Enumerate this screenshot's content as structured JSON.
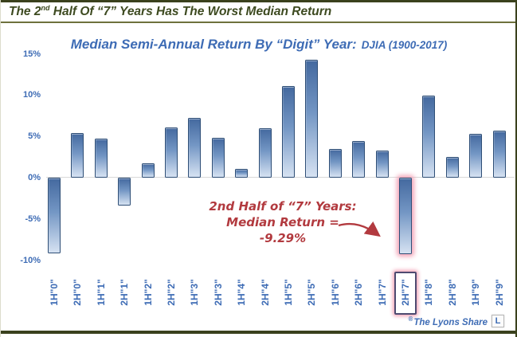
{
  "header": {
    "title_pre": "The 2",
    "title_sup": "nd",
    "title_post": " Half Of “7” Years Has The Worst Median Return"
  },
  "chart": {
    "title_main": "Median Semi-Annual Return By “Digit” Year:",
    "title_sub": "DJIA (1900-2017)"
  },
  "chart_data": {
    "type": "bar",
    "title": "Median Semi-Annual Return By “Digit” Year: DJIA (1900-2017)",
    "categories": [
      "1H\"0\"",
      "2H\"0\"",
      "1H\"1\"",
      "2H\"1\"",
      "1H\"2\"",
      "2H\"2\"",
      "1H\"3\"",
      "2H\"3\"",
      "1H\"4\"",
      "2H\"4\"",
      "1H\"5\"",
      "2H\"5\"",
      "1H\"6\"",
      "2H\"6\"",
      "1H\"7\"",
      "2H\"7\"",
      "1H\"8\"",
      "2H\"8\"",
      "1H\"9\"",
      "2H\"9\""
    ],
    "values": [
      -9.2,
      5.4,
      4.7,
      -3.4,
      1.7,
      6.1,
      7.2,
      4.8,
      1.1,
      6.0,
      11.1,
      14.3,
      3.5,
      4.4,
      3.3,
      -9.29,
      9.9,
      2.5,
      5.3,
      5.7
    ],
    "unit": "%",
    "ylim": [
      -10,
      15
    ],
    "ytick_values": [
      15,
      10,
      5,
      0,
      -5,
      -10
    ],
    "ytick_labels": [
      "15%",
      "10%",
      "5%",
      "0%",
      "-5%",
      "-10%"
    ],
    "grid": "zero-line only",
    "legend": "none",
    "highlight_index": 15,
    "highlight_category": "2H\"7\"",
    "highlight_value_label": "-9.29%"
  },
  "annotation": {
    "line1": "2nd Half of “7” Years:",
    "line2": "Median Return =",
    "line3": "-9.29%"
  },
  "footer": {
    "brand_mark": "®",
    "brand": "The Lyons Share",
    "logo_letter": "L"
  },
  "colors": {
    "accent_blue": "#3e6cb5",
    "bar_border": "#2e4e76",
    "bar_top": "#44699f",
    "bar_mid": "#7396c4",
    "bar_bottom": "#d6e2f2",
    "annotation_red": "#b23a3f",
    "highlight_pink": "#f29fb4",
    "highlight_box_border": "#4e4a70",
    "header_olive": "#3d4a20",
    "frame_olive": "#3a411d",
    "rule_olive": "#6e713d",
    "axis_line": "#d9d9d9"
  }
}
